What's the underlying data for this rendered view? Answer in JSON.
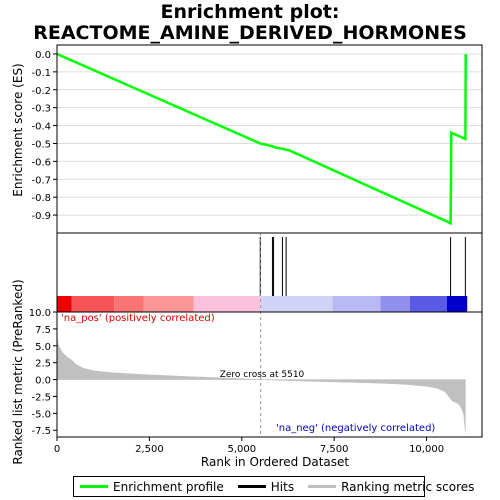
{
  "title_line1": "Enrichment plot:",
  "title_line2": "REACTOME_AMINE_DERIVED_HORMONES",
  "colors": {
    "enrichment": "#00ff00",
    "hits": "#000000",
    "metric_fill": "#c0c0c0",
    "pos_label": "#dd0000",
    "neg_label": "#0000cc",
    "frame": "#000000",
    "grid": "#dddddd"
  },
  "chart_data": [
    {
      "type": "line",
      "name": "enrichment-profile",
      "ylabel": "Enrichment score (ES)",
      "ylim": [
        -1.0,
        0.05
      ],
      "xlim": [
        0,
        11500
      ],
      "yticks": [
        "0.0",
        "-0.1",
        "-0.2",
        "-0.3",
        "-0.4",
        "-0.5",
        "-0.6",
        "-0.7",
        "-0.8",
        "-0.9"
      ],
      "ytick_values": [
        0.0,
        -0.1,
        -0.2,
        -0.3,
        -0.4,
        -0.5,
        -0.6,
        -0.7,
        -0.8,
        -0.9
      ],
      "grid": true,
      "x": [
        0,
        5500,
        5830,
        5860,
        6100,
        6200,
        6300,
        10650,
        10660,
        10670,
        11050,
        11060
      ],
      "y": [
        0.0,
        -0.5,
        -0.515,
        -0.52,
        -0.53,
        -0.535,
        -0.54,
        -0.945,
        -0.69,
        -0.44,
        -0.475,
        0.0
      ]
    },
    {
      "type": "scatter",
      "name": "hits",
      "x": [
        5500,
        5830,
        5860,
        6100,
        6200,
        10650,
        11050
      ]
    },
    {
      "type": "area",
      "name": "ranked-list-metric",
      "xlabel": "Rank in Ordered Dataset",
      "ylabel": "Ranked list metric (PreRanked)",
      "xlim": [
        0,
        11500
      ],
      "ylim": [
        -8.5,
        10.0
      ],
      "xticks": [
        "0",
        "2,500",
        "5,000",
        "7,500",
        "10,000"
      ],
      "xtick_values": [
        0,
        2500,
        5000,
        7500,
        10000
      ],
      "yticks": [
        "10.0",
        "7.5",
        "5.0",
        "2.5",
        "0.0",
        "-2.5",
        "-5.0",
        "-7.5"
      ],
      "ytick_values": [
        10.0,
        7.5,
        5.0,
        2.5,
        0.0,
        -2.5,
        -5.0,
        -7.5
      ],
      "x": [
        0,
        50,
        150,
        300,
        400,
        500,
        700,
        1000,
        1500,
        2500,
        3500,
        4500,
        5510,
        6500,
        7500,
        8500,
        9000,
        9500,
        10000,
        10300,
        10500,
        10600,
        10700,
        10800,
        10900,
        11000,
        11050
      ],
      "y": [
        6.2,
        5.0,
        4.0,
        3.2,
        2.9,
        2.3,
        1.7,
        1.3,
        1.0,
        0.7,
        0.45,
        0.25,
        0.0,
        -0.2,
        -0.35,
        -0.5,
        -0.6,
        -0.75,
        -1.0,
        -1.3,
        -1.8,
        -2.5,
        -3.2,
        -3.4,
        -3.8,
        -5.0,
        -7.8
      ],
      "annotations": {
        "zero_cross": "Zero cross at 5510",
        "pos_label": "'na_pos' (positively correlated)",
        "neg_label": "'na_neg' (negatively correlated)"
      },
      "zero_cross_x": 5510
    }
  ],
  "rank_bar": [
    {
      "from": 0,
      "to": 400,
      "color": "#ee0000"
    },
    {
      "from": 400,
      "to": 1550,
      "color": "#f55555"
    },
    {
      "from": 1550,
      "to": 2350,
      "color": "#f97474"
    },
    {
      "from": 2350,
      "to": 3700,
      "color": "#fa9696"
    },
    {
      "from": 3700,
      "to": 5500,
      "color": "#fbc0dc"
    },
    {
      "from": 5500,
      "to": 7450,
      "color": "#d2d2f7"
    },
    {
      "from": 7450,
      "to": 8750,
      "color": "#b9b9f3"
    },
    {
      "from": 8750,
      "to": 9550,
      "color": "#9090ee"
    },
    {
      "from": 9550,
      "to": 10550,
      "color": "#5a5ae6"
    },
    {
      "from": 10550,
      "to": 11100,
      "color": "#0000cc"
    }
  ],
  "legend": {
    "items": [
      {
        "label": "Enrichment profile",
        "style": "line",
        "color": "#00ff00"
      },
      {
        "label": "Hits",
        "style": "line",
        "color": "#000000"
      },
      {
        "label": "Ranking metric scores",
        "style": "line",
        "color": "#c0c0c0"
      }
    ]
  }
}
